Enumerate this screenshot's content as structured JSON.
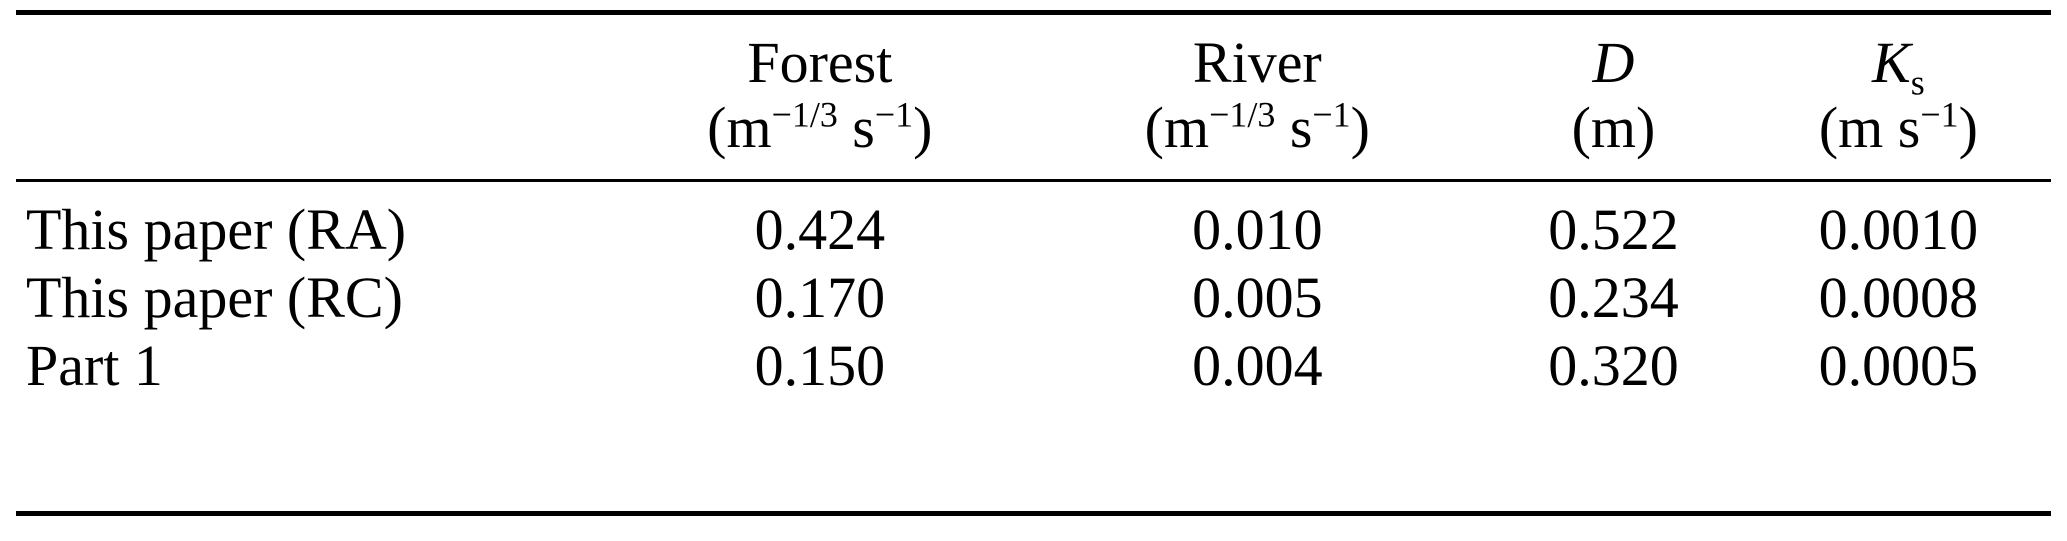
{
  "table": {
    "header": {
      "col1": {
        "title": "Forest",
        "unit_open": "(m",
        "unit_sup_a": "−1/3",
        "unit_mid": " s",
        "unit_sup_b": "−1",
        "unit_close": ")"
      },
      "col2": {
        "title": "River",
        "unit_open": "(m",
        "unit_sup_a": "−1/3",
        "unit_mid": " s",
        "unit_sup_b": "−1",
        "unit_close": ")"
      },
      "col3": {
        "title": "D",
        "unit": "(m)"
      },
      "col4": {
        "title_main": "K",
        "title_sub": "s",
        "unit_open": "(m s",
        "unit_sup": "−1",
        "unit_close": ")"
      }
    },
    "rows": [
      {
        "label": "This paper (RA)",
        "values": [
          "0.424",
          "0.010",
          "0.522",
          "0.0010"
        ]
      },
      {
        "label": "This paper (RC)",
        "values": [
          "0.170",
          "0.005",
          "0.234",
          "0.0008"
        ]
      },
      {
        "label": "Part 1",
        "values": [
          "0.150",
          "0.004",
          "0.320",
          "0.0005"
        ]
      }
    ]
  }
}
